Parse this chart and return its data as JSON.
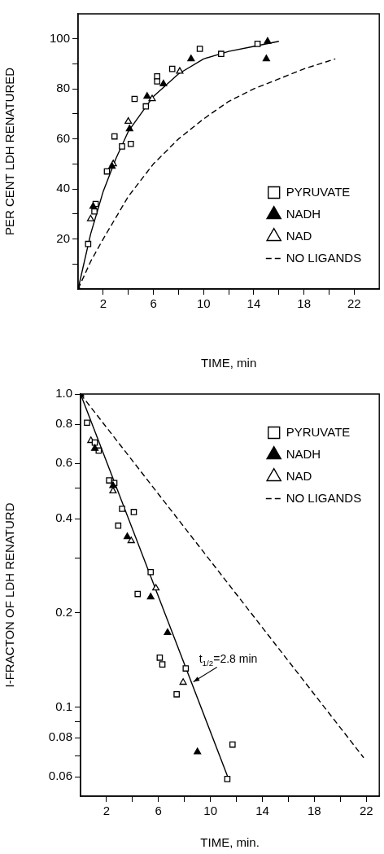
{
  "chart_data": [
    {
      "type": "scatter",
      "xlabel": "TIME, min",
      "ylabel": "PER CENT LDH RENATURED",
      "xlim": [
        0,
        24
      ],
      "ylim": [
        0,
        110
      ],
      "xticks": [
        2,
        {
          "value": 4,
          "label": null
        },
        6,
        {
          "value": 8,
          "label": null
        },
        10,
        {
          "value": 12,
          "label": null
        },
        14,
        {
          "value": 16,
          "label": null
        },
        18,
        {
          "value": 20,
          "label": null
        },
        22
      ],
      "yticks": [
        {
          "value": 10,
          "label": null
        },
        20,
        {
          "value": 30,
          "label": null
        },
        40,
        {
          "value": 50,
          "label": null
        },
        60,
        {
          "value": 70,
          "label": null
        },
        80,
        {
          "value": 90,
          "label": null
        },
        100
      ],
      "grid": false,
      "legend": "bottom right",
      "series": [
        {
          "name": "PYRUVATE",
          "marker": "square",
          "color": "#ffffff",
          "x": [
            0.8,
            1.3,
            1.4,
            2.3,
            2.9,
            3.5,
            4.2,
            4.5,
            5.4,
            6.3,
            6.3,
            7.5,
            9.7,
            11.4,
            14.3
          ],
          "values": [
            18,
            31,
            34,
            47,
            61,
            57,
            58,
            76,
            73,
            85,
            83,
            88,
            96,
            94,
            98
          ]
        },
        {
          "name": "NADH",
          "marker": "triangle",
          "color": "#000000",
          "x": [
            0,
            1.2,
            2.7,
            4.1,
            5.5,
            6.8,
            9.0,
            15.1,
            15.0
          ],
          "values": [
            0,
            33,
            49,
            64,
            77,
            82,
            92,
            99,
            92
          ]
        },
        {
          "name": "NAD",
          "marker": "triangle",
          "color": "#ffffff",
          "x": [
            1.0,
            2.8,
            4.0,
            5.9,
            8.1
          ],
          "values": [
            28,
            50,
            67,
            76,
            87
          ]
        },
        {
          "type": "line",
          "line_style": "solid",
          "color": "#000000",
          "x": [
            0,
            1,
            2,
            3,
            4,
            6,
            8,
            10,
            12,
            14,
            16
          ],
          "values": [
            0,
            22,
            39,
            52,
            63,
            77,
            86,
            92,
            95,
            97,
            99
          ]
        },
        {
          "name": "NO LIGANDS",
          "type": "line",
          "line_style": "dashed",
          "color": "#000000",
          "x": [
            0,
            1,
            2,
            4,
            6,
            8,
            10,
            12,
            14,
            16,
            18,
            20.5
          ],
          "values": [
            0,
            11,
            20,
            37,
            50,
            60,
            68,
            75,
            80,
            84,
            88,
            92
          ]
        }
      ]
    },
    {
      "type": "scatter",
      "xlabel": "TIME, min.",
      "ylabel": "I-FRACTON OF LDH RENATURD",
      "log": "y",
      "xlim": [
        0,
        23
      ],
      "ylim": [
        0.052,
        1.0
      ],
      "xticks": [
        2,
        {
          "value": 4,
          "label": null
        },
        6,
        {
          "value": 8,
          "label": null
        },
        10,
        {
          "value": 12,
          "label": null
        },
        14,
        {
          "value": 16,
          "label": null
        },
        18,
        {
          "value": 20,
          "label": null
        },
        22
      ],
      "yticks": [
        0.06,
        {
          "value": 0.07,
          "label": null
        },
        0.08,
        {
          "value": 0.09,
          "label": null
        },
        0.1,
        0.2,
        {
          "value": 0.3,
          "label": null
        },
        0.4,
        {
          "value": 0.5,
          "label": null
        },
        0.6,
        0.8,
        {
          "value": 1.0,
          "label": "1.0"
        }
      ],
      "grid": false,
      "legend": "top right",
      "annotations": [
        {
          "text": "t$_{1/2}$=2.8 min",
          "x": 8.5,
          "y": 0.122
        }
      ],
      "series": [
        {
          "name": "PYRUVATE",
          "marker": "square",
          "color": "#ffffff",
          "x": [
            0.5,
            1.1,
            1.4,
            2.2,
            2.6,
            3.2,
            4.1,
            2.9,
            5.4,
            4.4,
            6.1,
            6.3,
            8.1,
            7.4,
            11.7,
            11.3
          ],
          "values": [
            0.81,
            0.7,
            0.66,
            0.53,
            0.52,
            0.43,
            0.42,
            0.38,
            0.27,
            0.23,
            0.144,
            0.137,
            0.133,
            0.11,
            0.076,
            0.059
          ]
        },
        {
          "name": "NADH",
          "marker": "triangle",
          "color": "#000000",
          "x": [
            0,
            1.1,
            2.5,
            3.6,
            5.4,
            6.7,
            9.0
          ],
          "values": [
            1.0,
            0.67,
            0.51,
            0.35,
            0.225,
            0.173,
            0.072
          ]
        },
        {
          "name": "NAD",
          "marker": "triangle",
          "color": "#ffffff",
          "x": [
            0.8,
            2.5,
            3.9,
            5.8,
            7.9
          ],
          "values": [
            0.71,
            0.49,
            0.34,
            0.24,
            0.12
          ]
        },
        {
          "type": "line",
          "line_style": "solid",
          "color": "#000000",
          "x": [
            0,
            11.4
          ],
          "values": [
            1.0,
            0.059
          ]
        },
        {
          "name": "NO LIGANDS",
          "type": "line",
          "line_style": "dashed",
          "color": "#000000",
          "x": [
            0,
            21.8
          ],
          "values": [
            1.0,
            0.069
          ]
        }
      ]
    }
  ]
}
